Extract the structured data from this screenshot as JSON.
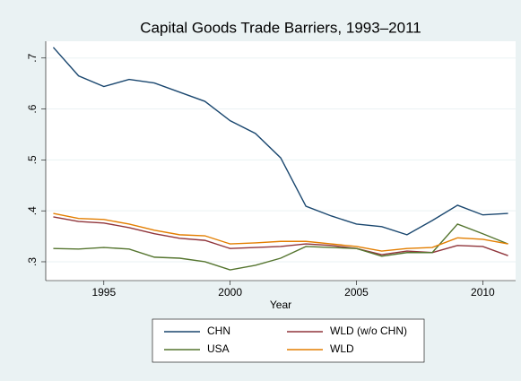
{
  "chart_data": {
    "type": "line",
    "title": "Capital Goods Trade Barriers, 1993–2011",
    "x_label": "Year",
    "x": [
      1993,
      1994,
      1995,
      1996,
      1997,
      1998,
      1999,
      2000,
      2001,
      2002,
      2003,
      2004,
      2005,
      2006,
      2007,
      2008,
      2009,
      2010,
      2011
    ],
    "series": [
      {
        "name": "CHN",
        "color": "#1a476f",
        "values": [
          0.721,
          0.665,
          0.644,
          0.658,
          0.651,
          0.633,
          0.615,
          0.577,
          0.552,
          0.504,
          0.409,
          0.39,
          0.374,
          0.369,
          0.353,
          0.381,
          0.411,
          0.392,
          0.395
        ]
      },
      {
        "name": "WLD (w/o CHN)",
        "color": "#90353b",
        "values": [
          0.388,
          0.379,
          0.376,
          0.367,
          0.355,
          0.346,
          0.342,
          0.326,
          0.328,
          0.33,
          0.335,
          0.332,
          0.326,
          0.314,
          0.321,
          0.318,
          0.332,
          0.33,
          0.312
        ]
      },
      {
        "name": "USA",
        "color": "#55752f",
        "values": [
          0.326,
          0.325,
          0.328,
          0.325,
          0.309,
          0.307,
          0.3,
          0.284,
          0.293,
          0.307,
          0.33,
          0.328,
          0.326,
          0.311,
          0.318,
          0.318,
          0.374,
          0.355,
          0.335
        ]
      },
      {
        "name": "WLD",
        "color": "#e37e00",
        "values": [
          0.395,
          0.385,
          0.383,
          0.374,
          0.362,
          0.353,
          0.351,
          0.335,
          0.337,
          0.34,
          0.34,
          0.335,
          0.33,
          0.321,
          0.326,
          0.328,
          0.347,
          0.344,
          0.335
        ]
      }
    ],
    "xlim": [
      1992.7,
      2011.3
    ],
    "xticks": [
      1995,
      2000,
      2005,
      2010
    ],
    "ylim": [
      0.263,
      0.733
    ],
    "yticks": [
      {
        "value": 0.3,
        "label": ".3"
      },
      {
        "value": 0.4,
        "label": ".4"
      },
      {
        "value": 0.5,
        "label": ".5"
      },
      {
        "value": 0.6,
        "label": ".6"
      },
      {
        "value": 0.7,
        "label": ".7"
      }
    ],
    "grid": true
  }
}
